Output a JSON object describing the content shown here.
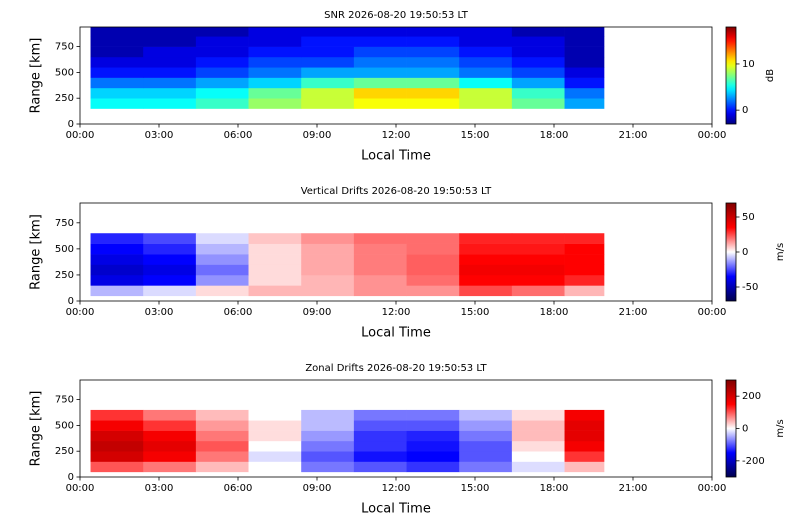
{
  "chart_data": [
    {
      "type": "heatmap",
      "title": "SNR 2026-08-20 19:50:53 LT",
      "xlabel": "Local Time",
      "ylabel": "Range [km]",
      "colorbar_label": "dB",
      "colormap": "jet",
      "xlim": [
        0,
        24
      ],
      "xticks": [
        {
          "value": 0,
          "label": "00:00"
        },
        {
          "value": 3,
          "label": "03:00"
        },
        {
          "value": 6,
          "label": "06:00"
        },
        {
          "value": 9,
          "label": "09:00"
        },
        {
          "value": 12,
          "label": "12:00"
        },
        {
          "value": 15,
          "label": "15:00"
        },
        {
          "value": 18,
          "label": "18:00"
        },
        {
          "value": 21,
          "label": "21:00"
        },
        {
          "value": 24,
          "label": "00:00"
        }
      ],
      "ylim": [
        0,
        940
      ],
      "yticks": [
        0,
        250,
        500,
        750
      ],
      "clim": [
        -3,
        18
      ],
      "cticks": [
        0,
        10
      ],
      "x_edges": [
        0.4,
        2.4,
        4.4,
        6.4,
        8.4,
        10.4,
        12.4,
        14.4,
        16.4,
        18.4,
        19.9
      ],
      "y_edges": [
        150,
        250,
        350,
        450,
        550,
        650,
        750,
        850,
        940
      ],
      "z": [
        [
          5,
          5,
          6,
          8,
          9,
          10,
          10,
          9,
          7,
          3
        ],
        [
          4,
          4,
          5,
          7,
          9,
          11,
          11,
          9,
          6,
          2
        ],
        [
          2,
          2,
          3,
          4,
          6,
          7,
          7,
          5,
          3,
          0
        ],
        [
          0,
          0,
          1,
          2,
          3,
          3,
          3,
          2,
          1,
          -1
        ],
        [
          -1,
          -1,
          0,
          1,
          1,
          2,
          2,
          1,
          0,
          -2
        ],
        [
          -2,
          -1,
          -1,
          0,
          0,
          1,
          1,
          0,
          -1,
          -2
        ],
        [
          -2,
          -2,
          -1,
          -1,
          0,
          0,
          0,
          -1,
          -1,
          -2
        ],
        [
          -2,
          -2,
          -2,
          -1,
          -1,
          -1,
          -1,
          -1,
          -2,
          -2
        ]
      ]
    },
    {
      "type": "heatmap",
      "title": "Vertical Drifts 2026-08-20 19:50:53 LT",
      "xlabel": "Local Time",
      "ylabel": "Range [km]",
      "colorbar_label": "m/s",
      "colormap": "seismic",
      "xlim": [
        0,
        24
      ],
      "xticks": [
        {
          "value": 0,
          "label": "00:00"
        },
        {
          "value": 3,
          "label": "03:00"
        },
        {
          "value": 6,
          "label": "06:00"
        },
        {
          "value": 9,
          "label": "09:00"
        },
        {
          "value": 12,
          "label": "12:00"
        },
        {
          "value": 15,
          "label": "15:00"
        },
        {
          "value": 18,
          "label": "18:00"
        },
        {
          "value": 21,
          "label": "21:00"
        },
        {
          "value": 24,
          "label": "00:00"
        }
      ],
      "ylim": [
        0,
        940
      ],
      "yticks": [
        0,
        250,
        500,
        750
      ],
      "clim": [
        -70,
        70
      ],
      "cticks": [
        -50,
        0,
        50
      ],
      "x_edges": [
        0.4,
        2.4,
        4.4,
        6.4,
        8.4,
        10.4,
        12.4,
        14.4,
        16.4,
        18.4,
        19.9
      ],
      "y_edges": [
        50,
        150,
        250,
        350,
        450,
        550,
        650
      ],
      "z": [
        [
          -10,
          -5,
          5,
          10,
          10,
          15,
          15,
          25,
          20,
          10
        ],
        [
          -40,
          -35,
          -15,
          5,
          10,
          15,
          20,
          35,
          35,
          30
        ],
        [
          -45,
          -40,
          -20,
          5,
          12,
          18,
          22,
          38,
          38,
          35
        ],
        [
          -40,
          -35,
          -15,
          5,
          12,
          18,
          22,
          35,
          35,
          35
        ],
        [
          -35,
          -30,
          -10,
          5,
          12,
          18,
          20,
          32,
          32,
          35
        ],
        [
          -30,
          -25,
          -5,
          8,
          15,
          20,
          20,
          30,
          30,
          30
        ]
      ]
    },
    {
      "type": "heatmap",
      "title": "Zonal Drifts 2026-08-20 19:50:53 LT",
      "xlabel": "Local Time",
      "ylabel": "Range [km]",
      "colorbar_label": "m/s",
      "colormap": "seismic",
      "xlim": [
        0,
        24
      ],
      "xticks": [
        {
          "value": 0,
          "label": "00:00"
        },
        {
          "value": 3,
          "label": "03:00"
        },
        {
          "value": 6,
          "label": "06:00"
        },
        {
          "value": 9,
          "label": "09:00"
        },
        {
          "value": 12,
          "label": "12:00"
        },
        {
          "value": 15,
          "label": "15:00"
        },
        {
          "value": 18,
          "label": "18:00"
        },
        {
          "value": 21,
          "label": "21:00"
        },
        {
          "value": 24,
          "label": "00:00"
        }
      ],
      "ylim": [
        0,
        940
      ],
      "yticks": [
        0,
        250,
        500,
        750
      ],
      "clim": [
        -300,
        300
      ],
      "cticks": [
        -200,
        0,
        200
      ],
      "x_edges": [
        0.4,
        2.4,
        4.4,
        6.4,
        8.4,
        10.4,
        12.4,
        14.4,
        16.4,
        18.4,
        19.9
      ],
      "y_edges": [
        50,
        150,
        250,
        350,
        450,
        550,
        650
      ],
      "z": [
        [
          100,
          80,
          40,
          0,
          -80,
          -100,
          -120,
          -80,
          -20,
          40
        ],
        [
          200,
          160,
          80,
          -20,
          -100,
          -140,
          -150,
          -100,
          0,
          120
        ],
        [
          220,
          180,
          100,
          0,
          -80,
          -120,
          -140,
          -100,
          20,
          160
        ],
        [
          200,
          160,
          80,
          20,
          -60,
          -120,
          -130,
          -80,
          40,
          180
        ],
        [
          160,
          120,
          60,
          20,
          -40,
          -100,
          -100,
          -60,
          40,
          180
        ],
        [
          120,
          80,
          40,
          0,
          -40,
          -80,
          -80,
          -40,
          20,
          160
        ]
      ]
    }
  ]
}
